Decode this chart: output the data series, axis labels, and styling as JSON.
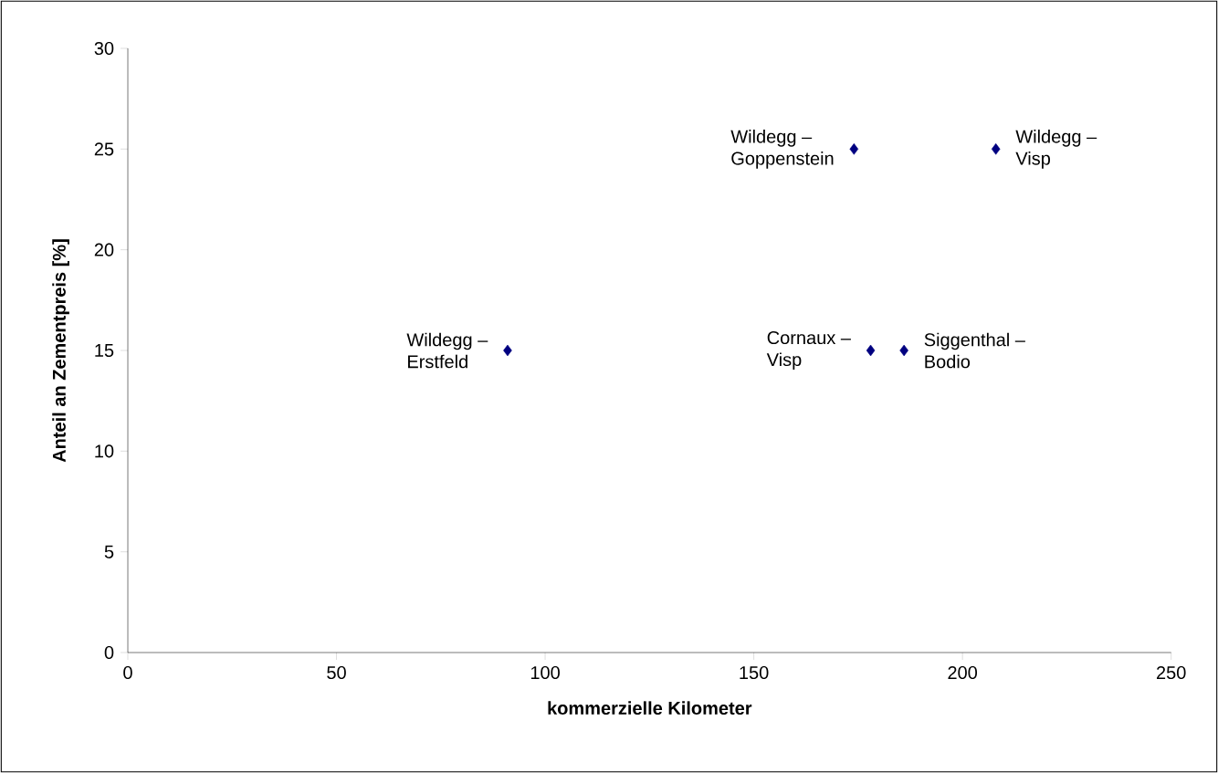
{
  "chart_data": {
    "type": "scatter",
    "xlabel": "kommerzielle Kilometer",
    "ylabel": "Anteil an Zementpreis [%]",
    "x": [
      91,
      174,
      208,
      178,
      186
    ],
    "values": [
      15,
      25,
      25,
      15,
      15
    ],
    "color": "#000080",
    "marker": "diamond",
    "grid": false,
    "xlim": [
      0,
      250
    ],
    "xticks": [
      0,
      50,
      100,
      150,
      200,
      250
    ],
    "ylim": [
      0,
      30
    ],
    "yticks": [
      0,
      5,
      10,
      15,
      20,
      25,
      30
    ],
    "annotations": [
      {
        "text": "Wildegg – Erstfeld",
        "x": 91,
        "y": 15
      },
      {
        "text": "Wildegg – Goppenstein",
        "x": 174,
        "y": 25
      },
      {
        "text": "Wildegg – Visp",
        "x": 208,
        "y": 25
      },
      {
        "text": "Cornaux – Visp",
        "x": 178,
        "y": 15
      },
      {
        "text": "Siggenthal – Bodio",
        "x": 186,
        "y": 15
      }
    ]
  }
}
